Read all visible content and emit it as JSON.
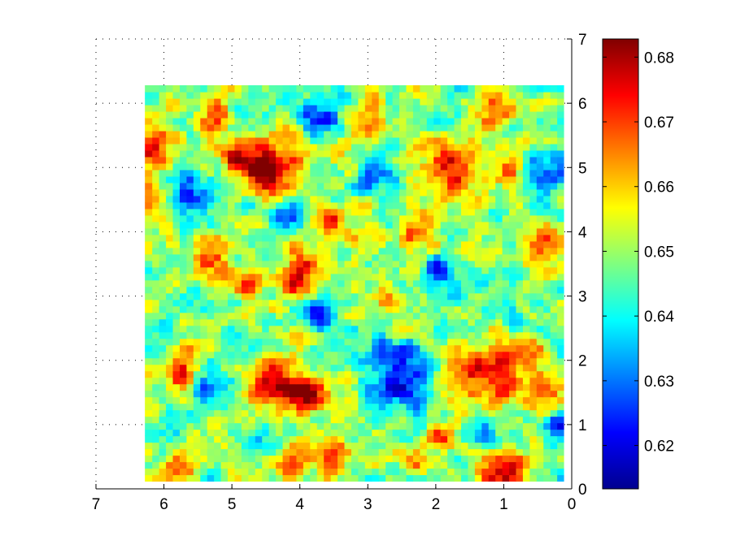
{
  "chart_data": {
    "type": "heatmap",
    "title": "",
    "xlabel": "",
    "ylabel": "",
    "xlim": [
      7,
      0
    ],
    "ylim": [
      0,
      7
    ],
    "x_reversed": true,
    "y_axis_side": "right",
    "grid": "dotted",
    "colormap": "jet",
    "xticks": [
      7,
      6,
      5,
      4,
      3,
      2,
      1,
      0
    ],
    "xtick_labels": [
      "7",
      "6",
      "5",
      "4",
      "3",
      "2",
      "1",
      "0"
    ],
    "yticks": [
      0,
      1,
      2,
      3,
      4,
      5,
      6,
      7
    ],
    "ytick_labels": [
      "0",
      "1",
      "2",
      "3",
      "4",
      "5",
      "6",
      "7"
    ],
    "grid_extent": {
      "x": [
        0.12,
        6.28
      ],
      "y": [
        0.12,
        6.28
      ]
    },
    "grid_size": [
      61,
      61
    ],
    "background_value": 0.648,
    "field_note": "spatially correlated random field; blobs approximate visible hot (red) and cold (blue) regions",
    "hotspots": [
      {
        "x": 6.2,
        "y": 5.4,
        "r": 0.35,
        "v": 0.677
      },
      {
        "x": 6.2,
        "y": 4.5,
        "r": 0.25,
        "v": 0.67
      },
      {
        "x": 4.4,
        "y": 5.0,
        "r": 0.45,
        "v": 0.678
      },
      {
        "x": 4.9,
        "y": 5.1,
        "r": 0.25,
        "v": 0.669
      },
      {
        "x": 5.2,
        "y": 5.8,
        "r": 0.25,
        "v": 0.669
      },
      {
        "x": 3.0,
        "y": 5.7,
        "r": 0.25,
        "v": 0.669
      },
      {
        "x": 1.8,
        "y": 5.0,
        "r": 0.4,
        "v": 0.678
      },
      {
        "x": 1.1,
        "y": 5.9,
        "r": 0.3,
        "v": 0.67
      },
      {
        "x": 0.9,
        "y": 5.0,
        "r": 0.25,
        "v": 0.668
      },
      {
        "x": 3.5,
        "y": 4.1,
        "r": 0.3,
        "v": 0.668
      },
      {
        "x": 2.3,
        "y": 4.0,
        "r": 0.3,
        "v": 0.669
      },
      {
        "x": 0.5,
        "y": 3.8,
        "r": 0.3,
        "v": 0.668
      },
      {
        "x": 5.3,
        "y": 3.6,
        "r": 0.3,
        "v": 0.67
      },
      {
        "x": 4.0,
        "y": 3.3,
        "r": 0.35,
        "v": 0.673
      },
      {
        "x": 4.8,
        "y": 3.2,
        "r": 0.25,
        "v": 0.664
      },
      {
        "x": 2.7,
        "y": 2.9,
        "r": 0.2,
        "v": 0.664
      },
      {
        "x": 5.8,
        "y": 1.9,
        "r": 0.3,
        "v": 0.67
      },
      {
        "x": 4.4,
        "y": 1.7,
        "r": 0.4,
        "v": 0.674
      },
      {
        "x": 3.9,
        "y": 1.5,
        "r": 0.3,
        "v": 0.672
      },
      {
        "x": 1.3,
        "y": 1.8,
        "r": 0.45,
        "v": 0.679
      },
      {
        "x": 0.6,
        "y": 2.1,
        "r": 0.2,
        "v": 0.667
      },
      {
        "x": 0.4,
        "y": 1.5,
        "r": 0.25,
        "v": 0.67
      },
      {
        "x": 1.0,
        "y": 0.3,
        "r": 0.35,
        "v": 0.677
      },
      {
        "x": 2.0,
        "y": 0.8,
        "r": 0.25,
        "v": 0.667
      },
      {
        "x": 3.5,
        "y": 0.5,
        "r": 0.3,
        "v": 0.668
      },
      {
        "x": 4.1,
        "y": 0.4,
        "r": 0.25,
        "v": 0.668
      },
      {
        "x": 5.8,
        "y": 0.3,
        "r": 0.25,
        "v": 0.667
      },
      {
        "x": 2.3,
        "y": 0.4,
        "r": 0.2,
        "v": 0.665
      },
      {
        "x": 2.3,
        "y": 6.2,
        "r": 0.15,
        "v": 0.668
      }
    ],
    "coldspots": [
      {
        "x": 5.6,
        "y": 4.6,
        "r": 0.3,
        "v": 0.628
      },
      {
        "x": 3.7,
        "y": 5.8,
        "r": 0.3,
        "v": 0.627
      },
      {
        "x": 4.8,
        "y": 5.8,
        "r": 0.3,
        "v": 0.635
      },
      {
        "x": 2.8,
        "y": 4.8,
        "r": 0.25,
        "v": 0.627
      },
      {
        "x": 4.2,
        "y": 4.3,
        "r": 0.25,
        "v": 0.628
      },
      {
        "x": 0.4,
        "y": 4.9,
        "r": 0.3,
        "v": 0.624
      },
      {
        "x": 1.9,
        "y": 3.4,
        "r": 0.3,
        "v": 0.631
      },
      {
        "x": 3.7,
        "y": 2.7,
        "r": 0.25,
        "v": 0.627
      },
      {
        "x": 2.5,
        "y": 1.8,
        "r": 0.45,
        "v": 0.622
      },
      {
        "x": 5.3,
        "y": 1.6,
        "r": 0.25,
        "v": 0.63
      },
      {
        "x": 6.1,
        "y": 2.2,
        "r": 0.25,
        "v": 0.636
      },
      {
        "x": 0.2,
        "y": 1.0,
        "r": 0.25,
        "v": 0.628
      },
      {
        "x": 4.6,
        "y": 0.7,
        "r": 0.25,
        "v": 0.636
      },
      {
        "x": 1.3,
        "y": 0.9,
        "r": 0.2,
        "v": 0.634
      }
    ],
    "colorbar": {
      "min": 0.6133,
      "max": 0.6828,
      "ticks": [
        0.62,
        0.63,
        0.64,
        0.65,
        0.66,
        0.67,
        0.68
      ],
      "tick_labels": [
        "0.62",
        "0.63",
        "0.64",
        "0.65",
        "0.66",
        "0.67",
        "0.68"
      ],
      "colors": [
        "#00008f",
        "#0000ff",
        "#00ffff",
        "#ffff00",
        "#ff0000",
        "#800000"
      ],
      "color_stops": [
        0,
        0.125,
        0.375,
        0.625,
        0.875,
        1
      ]
    }
  }
}
